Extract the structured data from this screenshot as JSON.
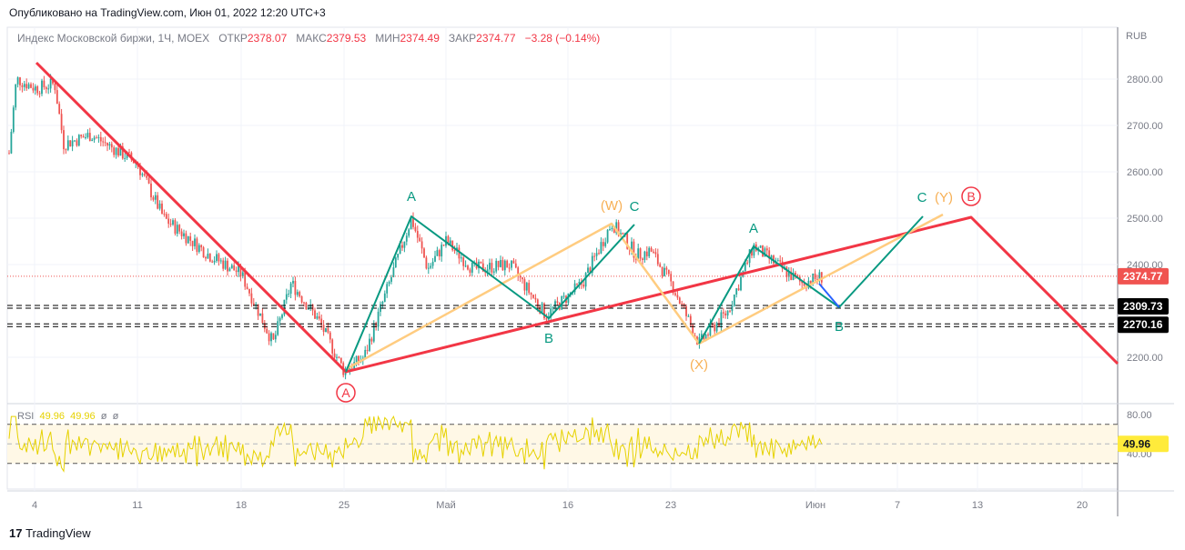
{
  "published": "Опубликовано на TradingView.com, Июн 01, 2022 12:20 UTC+3",
  "legend": {
    "symbol": "Индекс Московской биржи, 1Ч, MOEX",
    "open_label": "ОТКР",
    "open": "2378.07",
    "high_label": "МАКС",
    "high": "2379.53",
    "low_label": "МИН",
    "low": "2374.49",
    "close_label": "ЗАКР",
    "close": "2374.77",
    "change": "−3.28 (−0.14%)"
  },
  "rsi_legend": {
    "name": "RSI",
    "v1": "49.96",
    "v2": "49.96",
    "p1": "ø",
    "p2": "ø"
  },
  "currency": "RUB",
  "logo": "TradingView",
  "chart_data": {
    "type": "candlestick",
    "price_ticks": [
      "2800.00",
      "2700.00",
      "2600.00",
      "2500.00",
      "2400.00",
      "2200.00"
    ],
    "price_tick_values": [
      2800,
      2700,
      2600,
      2500,
      2400,
      2200
    ],
    "rsi_ticks": [
      "80.00",
      "40.00"
    ],
    "rsi_tick_values": [
      80,
      40
    ],
    "x_ticks": [
      "4",
      "11",
      "18",
      "25",
      "Май",
      "16",
      "23",
      "Июн",
      "7",
      "13",
      "20"
    ],
    "last_price": "2374.77",
    "last_price_value": 2374.77,
    "levels": [
      {
        "label": "2309.73",
        "value": 2309.73
      },
      {
        "label": "2270.16",
        "value": 2270.16
      }
    ],
    "rsi_last": "49.96",
    "rsi_last_value": 49.96,
    "close_path": [
      2640,
      2800,
      2780,
      2790,
      2660,
      2680,
      2620,
      2500,
      2420,
      2380,
      2230,
      2360,
      2280,
      2170,
      2200,
      2500,
      2390,
      2450,
      2390,
      2400,
      2290,
      2360,
      2490,
      2420,
      2430,
      2350,
      2230,
      2300,
      2440,
      2390,
      2360,
      2375
    ],
    "wave_labels": {
      "A1": "A",
      "B1": "B",
      "W": "(W)",
      "C1": "C",
      "X": "(X)",
      "A2": "A",
      "B2": "B",
      "C2": "C",
      "Y": "(Y)",
      "cA": "A",
      "cB": "B"
    },
    "colors": {
      "up": "#26a69a",
      "down": "#ef5350",
      "red_wave": "#f23645",
      "orange_wave": "#ffcc80",
      "green_wave": "#089981",
      "blue": "#2962ff",
      "rsi": "#e6d200"
    }
  }
}
